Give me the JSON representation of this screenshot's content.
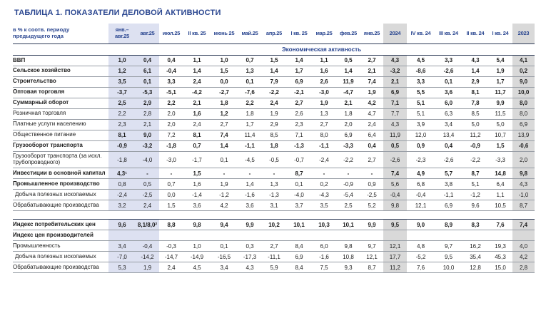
{
  "title": "ТАБЛИЦА 1. ПОКАЗАТЕЛИ ДЕЛОВОЙ АКТИВНОСТИ",
  "colors": {
    "accent_navy": "#2a4690",
    "highlight_lavender": "#dde1f1",
    "highlight_gray": "#d9d9d9"
  },
  "table": {
    "corner_label": "в % к соотв. периоду\nпредыдущего года",
    "columns": [
      "янв.–\nавг.25",
      "авг.25",
      "июл.25",
      "II кв. 25",
      "июнь 25",
      "май.25",
      "апр.25",
      "I кв. 25",
      "мар.25",
      "фев.25",
      "янв.25",
      "2024",
      "IV кв. 24",
      "III кв. 24",
      "II кв. 24",
      "I кв. 24",
      "2023"
    ],
    "section_title": "Экономическая активность",
    "rows_main": [
      {
        "label": "ВВП",
        "bold_label": true,
        "bold_values": true,
        "values": [
          "1,0",
          "0,4",
          "0,4",
          "1,1",
          "1,0",
          "0,7",
          "1,5",
          "1,4",
          "1,1",
          "0,5",
          "2,7",
          "4,3",
          "4,5",
          "3,3",
          "4,3",
          "5,4",
          "4,1"
        ]
      },
      {
        "label": "Сельское хозяйство",
        "bold_label": true,
        "bold_values": true,
        "values": [
          "1,2",
          "6,1",
          "-0,4",
          "1,4",
          "1,5",
          "1,3",
          "1,4",
          "1,7",
          "1,6",
          "1,4",
          "2,1",
          "-3,2",
          "-8,6",
          "-2,6",
          "1,4",
          "1,9",
          "0,2"
        ]
      },
      {
        "label": "Строительство",
        "bold_label": true,
        "bold_values": true,
        "values": [
          "3,5",
          "0,1",
          "3,3",
          "2,4",
          "0,0",
          "0,1",
          "7,9",
          "6,9",
          "2,6",
          "11,9",
          "7,4",
          "2,1",
          "3,3",
          "0,1",
          "2,9",
          "1,7",
          "9,0"
        ]
      },
      {
        "label": "Оптовая торговля",
        "bold_label": true,
        "bold_values": true,
        "values": [
          "-3,7",
          "-5,3",
          "-5,1",
          "-4,2",
          "-2,7",
          "-7,6",
          "-2,2",
          "-2,1",
          "-3,0",
          "-4,7",
          "1,9",
          "6,9",
          "5,5",
          "3,6",
          "8,1",
          "11,7",
          "10,0"
        ]
      },
      {
        "label": "Суммарный оборот",
        "bold_label": true,
        "bold_values": true,
        "values": [
          "2,5",
          "2,9",
          "2,2",
          "2,1",
          "1,8",
          "2,2",
          "2,4",
          "2,7",
          "1,9",
          "2,1",
          "4,2",
          "7,1",
          "5,1",
          "6,0",
          "7,8",
          "9,9",
          "8,0"
        ]
      },
      {
        "label": "Розничная торговля",
        "bold_cells": [
          3,
          4
        ],
        "values": [
          "2,2",
          "2,8",
          "2,0",
          "1,6",
          "1,2",
          "1,8",
          "1,9",
          "2,6",
          "1,3",
          "1,8",
          "4,7",
          "7,7",
          "5,1",
          "6,3",
          "8,5",
          "11,5",
          "8,0"
        ]
      },
      {
        "label": "Платные услуги населению",
        "values": [
          "2,3",
          "2,1",
          "2,0",
          "2,4",
          "2,7",
          "1,7",
          "2,9",
          "2,3",
          "2,7",
          "2,0",
          "2,4",
          "4,3",
          "3,9",
          "3,4",
          "5,0",
          "5,0",
          "6,9"
        ]
      },
      {
        "label": "Общественное питание",
        "bold_cells": [
          0,
          1,
          3,
          4
        ],
        "values": [
          "8,1",
          "9,0",
          "7,2",
          "8,1",
          "7,4",
          "11,4",
          "8,5",
          "7,1",
          "8,0",
          "6,9",
          "6,4",
          "11,9",
          "12,0",
          "13,4",
          "11,2",
          "10,7",
          "13,9"
        ]
      },
      {
        "label": "Грузооборот транспорта",
        "bold_label": true,
        "bold_values": true,
        "values": [
          "-0,9",
          "-3,2",
          "-1,8",
          "0,7",
          "1,4",
          "-1,1",
          "1,8",
          "-1,3",
          "-1,1",
          "-3,3",
          "0,4",
          "0,5",
          "0,9",
          "0,4",
          "-0,9",
          "1,5",
          "-0,6"
        ]
      },
      {
        "label": "Грузооборот транспорта (за искл. трубопроводного)",
        "values": [
          "-1,8",
          "-4,0",
          "-3,0",
          "-1,7",
          "0,1",
          "-4,5",
          "-0,5",
          "-0,7",
          "-2,4",
          "-2,2",
          "2,7",
          "-2,6",
          "-2,3",
          "-2,6",
          "-2,2",
          "-3,3",
          "2,0"
        ]
      },
      {
        "label": "Инвестиции в основной капитал",
        "bold_label": true,
        "bold_values": true,
        "values": [
          "4,3¹",
          "-",
          "-",
          "1,5",
          "-",
          "-",
          "-",
          "8,7",
          "-",
          "-",
          "-",
          "7,4",
          "4,9",
          "5,7",
          "8,7",
          "14,8",
          "9,8"
        ]
      },
      {
        "label": "Промышленное производство",
        "bold_label": true,
        "values": [
          "0,8",
          "0,5",
          "0,7",
          "1,6",
          "1,9",
          "1,4",
          "1,3",
          "0,1",
          "0,2",
          "-0,9",
          "0,9",
          "5,6",
          "6,8",
          "3,8",
          "5,1",
          "6,4",
          "4,3"
        ]
      },
      {
        "label": "Добыча полезных ископаемых",
        "indent": true,
        "values": [
          "-2,4",
          "-2,5",
          "0,0",
          "-1,4",
          "-1,2",
          "-1,6",
          "-1,3",
          "-4,0",
          "-4,3",
          "-5,4",
          "-2,5",
          "-0,4",
          "-0,4",
          "-1,1",
          "-1,2",
          "1,1",
          "-1,0"
        ]
      },
      {
        "label": "Обрабатывающие производства",
        "values": [
          "3,2",
          "2,4",
          "1,5",
          "3,6",
          "4,2",
          "3,6",
          "3,1",
          "3,7",
          "3,5",
          "2,5",
          "5,2",
          "9,8",
          "12,1",
          "6,9",
          "9,6",
          "10,5",
          "8,7"
        ]
      }
    ],
    "rows_prices": [
      {
        "label": "Индекс потребительских цен",
        "bold_label": true,
        "bold_values": true,
        "values": [
          "9,6",
          "8,1/8,0²",
          "8,8",
          "9,8",
          "9,4",
          "9,9",
          "10,2",
          "10,1",
          "10,3",
          "10,1",
          "9,9",
          "9,5",
          "9,0",
          "8,9",
          "8,3",
          "7,6",
          "7,4"
        ]
      },
      {
        "label": "Индекс цен производителей",
        "bold_label": true,
        "values": [
          "",
          "",
          "",
          "",
          "",
          "",
          "",
          "",
          "",
          "",
          "",
          "",
          "",
          "",
          "",
          "",
          ""
        ]
      },
      {
        "label": "Промышленность",
        "values": [
          "3,4",
          "-0,4",
          "-0,3",
          "1,0",
          "0,1",
          "0,3",
          "2,7",
          "8,4",
          "6,0",
          "9,8",
          "9,7",
          "12,1",
          "4,8",
          "9,7",
          "16,2",
          "19,3",
          "4,0"
        ]
      },
      {
        "label": "Добыча полезных ископаемых",
        "indent": true,
        "values": [
          "-7,0",
          "-14,2",
          "-14,7",
          "-14,9",
          "-16,5",
          "-17,3",
          "-11,1",
          "6,9",
          "-1,6",
          "10,8",
          "12,1",
          "17,7",
          "-5,2",
          "9,5",
          "35,4",
          "45,3",
          "4,2"
        ]
      },
      {
        "label": "Обрабатывающие производства",
        "values": [
          "5,3",
          "1,9",
          "2,4",
          "4,5",
          "3,4",
          "4,3",
          "5,9",
          "8,4",
          "7,5",
          "9,3",
          "8,7",
          "11,2",
          "7,6",
          "10,0",
          "12,8",
          "15,0",
          "2,8"
        ]
      }
    ]
  }
}
